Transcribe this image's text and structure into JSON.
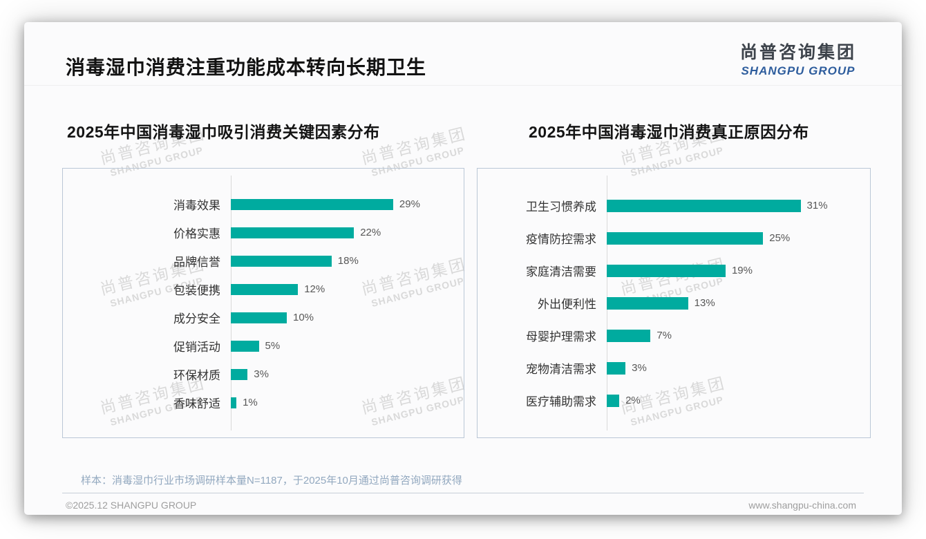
{
  "page": {
    "title": "消毒湿巾消费注重功能成本转向长期卫生",
    "logo": {
      "cn": "尚普咨询集团",
      "en": "SHANGPU GROUP"
    },
    "watermark": {
      "cn": "尚普咨询集团",
      "en": "SHANGPU GROUP"
    },
    "sample_note": "样本：消毒湿巾行业市场调研样本量N=1187，于2025年10月通过尚普咨询调研获得",
    "footer": {
      "left": "©2025.12 SHANGPU GROUP",
      "right": "www.shangpu-china.com"
    }
  },
  "colors": {
    "bar": "#00ab9f",
    "logo_blue": "#2e5d9d",
    "note_text": "#92a8bf",
    "panel_border": "#bac7d6"
  },
  "chart_data": [
    {
      "type": "bar",
      "orientation": "horizontal",
      "title": "2025年中国消毒湿巾吸引消费关键因素分布",
      "categories": [
        "消毒效果",
        "价格实惠",
        "品牌信誉",
        "包装便携",
        "成分安全",
        "促销活动",
        "环保材质",
        "香味舒适"
      ],
      "values": [
        29,
        22,
        18,
        12,
        10,
        5,
        3,
        1
      ],
      "data_labels": [
        "29%",
        "22%",
        "18%",
        "12%",
        "10%",
        "5%",
        "3%",
        "1%"
      ],
      "unit": "%",
      "xlim": [
        0,
        32
      ],
      "grid": false,
      "legend": false
    },
    {
      "type": "bar",
      "orientation": "horizontal",
      "title": "2025年中国消毒湿巾消费真正原因分布",
      "categories": [
        "卫生习惯养成",
        "疫情防控需求",
        "家庭清洁需要",
        "外出便利性",
        "母婴护理需求",
        "宠物清洁需求",
        "医疗辅助需求"
      ],
      "values": [
        31,
        25,
        19,
        13,
        7,
        3,
        2
      ],
      "data_labels": [
        "31%",
        "25%",
        "19%",
        "13%",
        "7%",
        "3%",
        "2%"
      ],
      "unit": "%",
      "xlim": [
        0,
        34
      ],
      "grid": false,
      "legend": false
    }
  ]
}
